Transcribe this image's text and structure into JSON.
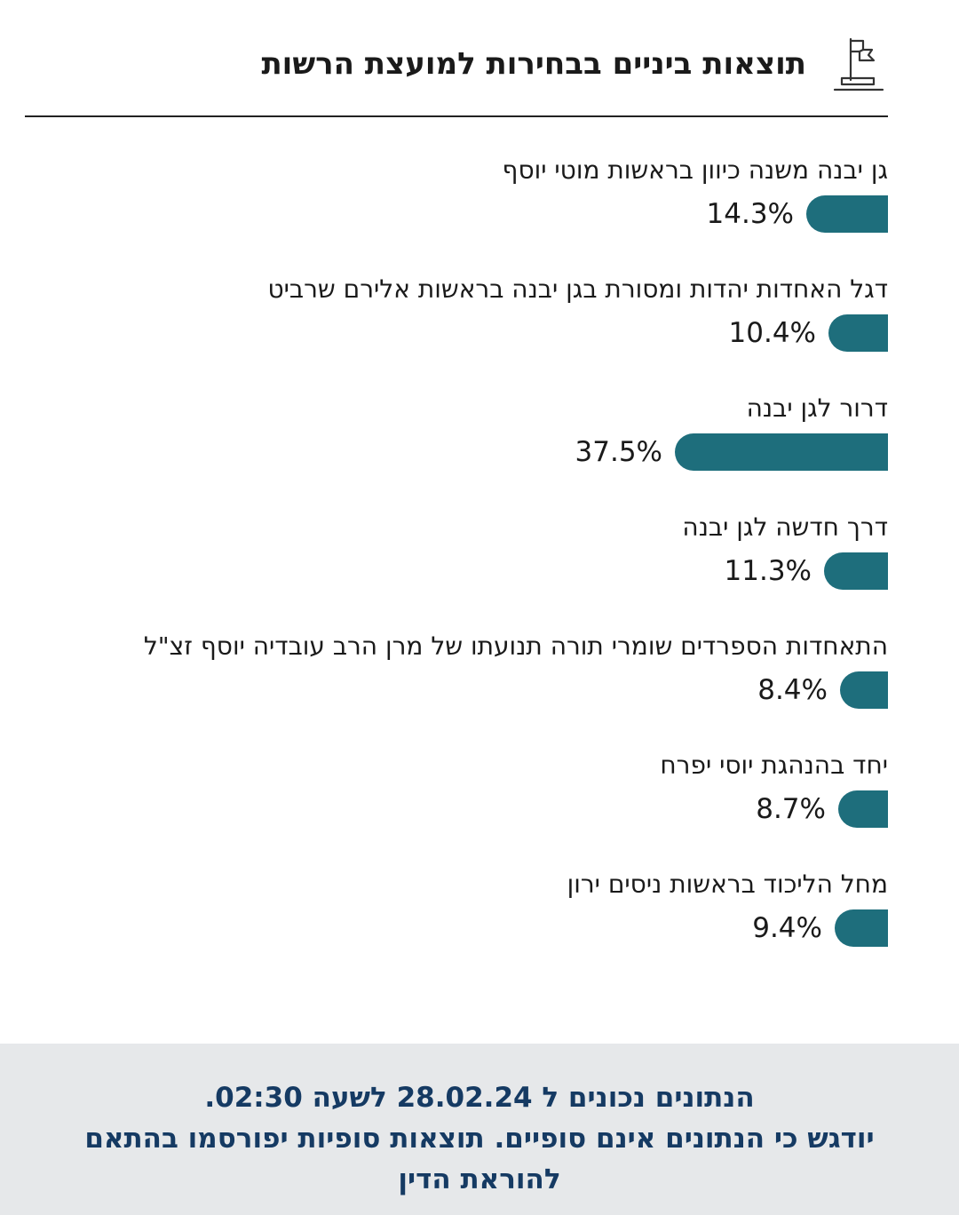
{
  "header": {
    "title": "תוצאות ביניים בבחירות למועצת הרשות",
    "icon": "flag-podium-icon"
  },
  "colors": {
    "bar": "#1e6e7c",
    "footer_text": "#153a63",
    "footer_bg": "#e6e8ea"
  },
  "chart_data": {
    "type": "bar",
    "orientation": "horizontal",
    "categories": [
      "גן יבנה משנה כיוון בראשות מוטי יוסף",
      "דגל האחדות יהדות ומסורת בגן יבנה בראשות אלירם שרביט",
      "דרור לגן יבנה",
      "דרך חדשה לגן יבנה",
      "התאחדות הספרדים שומרי תורה תנועתו של מרן הרב עובדיה יוסף זצ\"ל",
      "יחד בהנהגת יוסי יפרח",
      "מחל הליכוד בראשות ניסים ירון"
    ],
    "values": [
      14.3,
      10.4,
      37.5,
      11.3,
      8.4,
      8.7,
      9.4
    ],
    "value_labels": [
      "14.3%",
      "10.4%",
      "37.5%",
      "11.3%",
      "8.4%",
      "8.7%",
      "9.4%"
    ],
    "unit": "%",
    "title": "תוצאות ביניים בבחירות למועצת הרשות",
    "grid": false,
    "legend": "none"
  },
  "footer": {
    "line1": "הנתונים נכונים ל 28.02.24 לשעה 02:30.",
    "line2": "יודגש כי הנתונים אינם סופיים. תוצאות סופיות יפורסמו בהתאם",
    "line3": "להוראת הדין"
  }
}
